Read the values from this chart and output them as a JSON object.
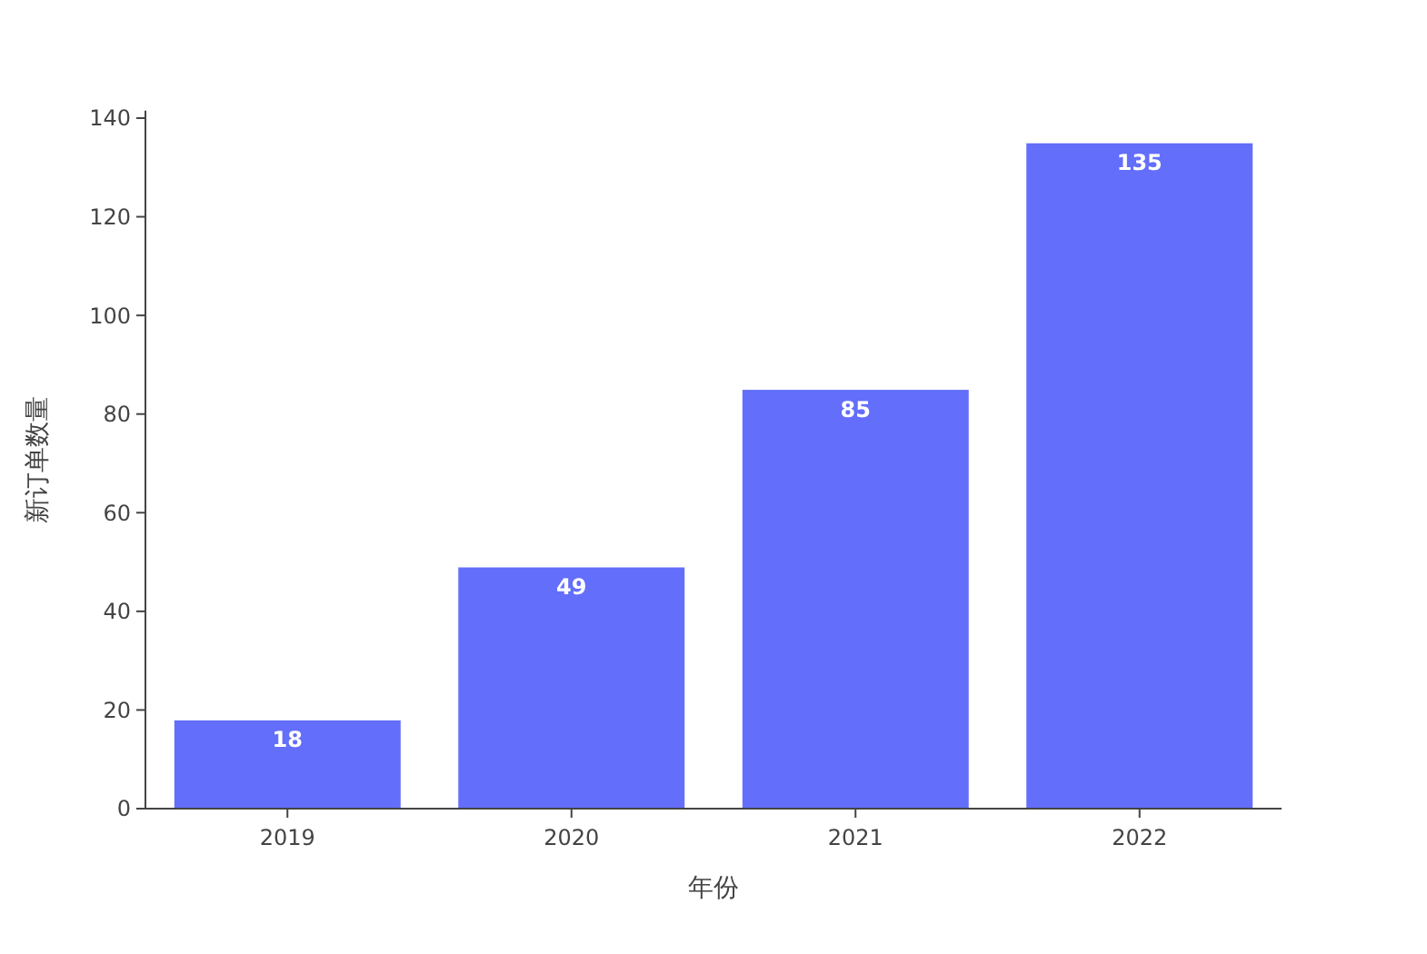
{
  "chart_data": {
    "type": "bar",
    "xlabel": "年份",
    "ylabel": "新订单数量",
    "categories": [
      "2019",
      "2020",
      "2021",
      "2022"
    ],
    "values": [
      18,
      49,
      85,
      135
    ],
    "color": "#636efa",
    "data_labels": true,
    "ylim": [
      0,
      141.5
    ],
    "yticks": [
      0,
      20,
      40,
      60,
      80,
      100,
      120,
      140
    ],
    "grid": false
  }
}
